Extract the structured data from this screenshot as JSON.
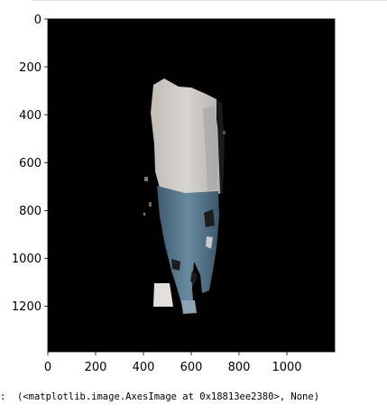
{
  "notebook": {
    "output_prompt": ":",
    "output_text": "(<matplotlib.image.AxesImage at 0x18813ee2380>, None)"
  },
  "chart_data": {
    "type": "image",
    "image_description_visible": "segmented person (white t-shirt, blue jeans) on black background",
    "x_ticks": [
      "0",
      "200",
      "400",
      "600",
      "800",
      "1000"
    ],
    "x_tick_values": [
      0,
      200,
      400,
      600,
      800,
      1000
    ],
    "y_ticks": [
      "0",
      "200",
      "400",
      "600",
      "800",
      "1000",
      "1200"
    ],
    "y_tick_values": [
      0,
      200,
      400,
      600,
      800,
      1000,
      1200
    ],
    "xlim": [
      0,
      1200
    ],
    "ylim": [
      1390,
      0
    ],
    "background_color": "#000000",
    "shirt_color": "#c9c6c4",
    "jeans_color": "#4f6d82",
    "skin_color": "#d8cfc8"
  }
}
